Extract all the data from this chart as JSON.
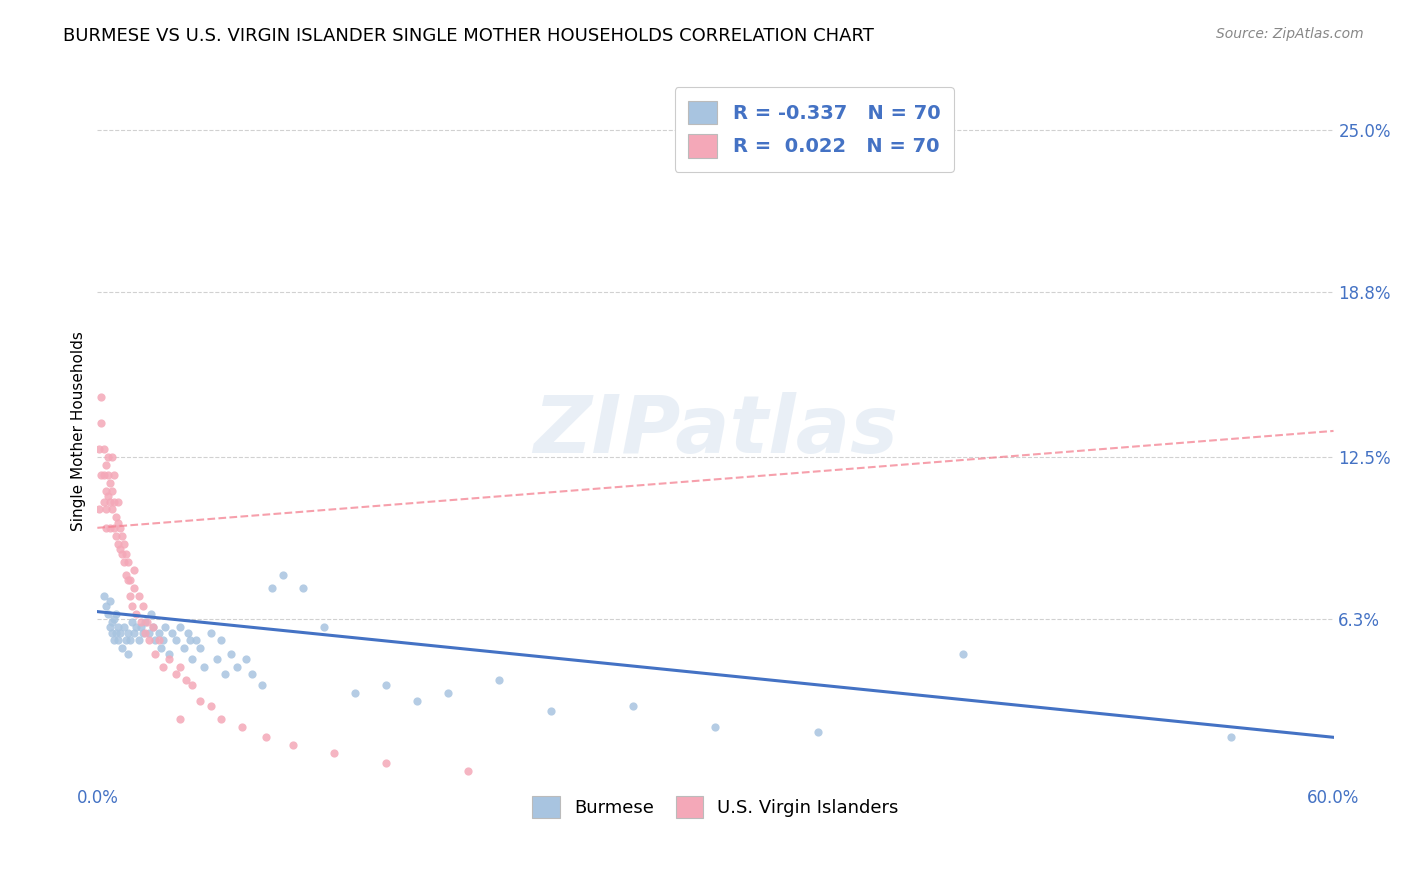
{
  "title": "BURMESE VS U.S. VIRGIN ISLANDER SINGLE MOTHER HOUSEHOLDS CORRELATION CHART",
  "source": "Source: ZipAtlas.com",
  "ylabel": "Single Mother Households",
  "xlim": [
    0.0,
    0.6
  ],
  "ylim": [
    0.0,
    0.27
  ],
  "yticks": [
    0.063,
    0.125,
    0.188,
    0.25
  ],
  "ytick_labels": [
    "6.3%",
    "12.5%",
    "18.8%",
    "25.0%"
  ],
  "xtick_positions": [
    0.0,
    0.6
  ],
  "xtick_labels": [
    "0.0%",
    "60.0%"
  ],
  "burmese_color": "#a8c4e0",
  "virgin_color": "#f4a8b8",
  "blue_line_color": "#4472c4",
  "pink_line_color": "#f48090",
  "R_burmese": -0.337,
  "N_burmese": 70,
  "R_virgin": 0.022,
  "N_virgin": 70,
  "legend_label_burmese": "Burmese",
  "legend_label_virgin": "U.S. Virgin Islanders",
  "watermark": "ZIPatlas",
  "title_fontsize": 13,
  "tick_label_color": "#4472c4",
  "blue_trendline_x": [
    0.0,
    0.6
  ],
  "blue_trendline_y": [
    0.066,
    0.018
  ],
  "pink_trendline_x": [
    0.0,
    0.6
  ],
  "pink_trendline_y": [
    0.098,
    0.135
  ],
  "burmese_x": [
    0.003,
    0.004,
    0.005,
    0.006,
    0.006,
    0.007,
    0.007,
    0.008,
    0.008,
    0.009,
    0.009,
    0.01,
    0.01,
    0.011,
    0.012,
    0.013,
    0.014,
    0.015,
    0.015,
    0.016,
    0.017,
    0.018,
    0.019,
    0.02,
    0.021,
    0.022,
    0.023,
    0.025,
    0.026,
    0.027,
    0.028,
    0.03,
    0.031,
    0.032,
    0.033,
    0.035,
    0.036,
    0.038,
    0.04,
    0.042,
    0.044,
    0.045,
    0.046,
    0.048,
    0.05,
    0.052,
    0.055,
    0.058,
    0.06,
    0.062,
    0.065,
    0.068,
    0.072,
    0.075,
    0.08,
    0.085,
    0.09,
    0.1,
    0.11,
    0.125,
    0.14,
    0.155,
    0.17,
    0.195,
    0.22,
    0.26,
    0.3,
    0.35,
    0.42,
    0.55
  ],
  "burmese_y": [
    0.072,
    0.068,
    0.065,
    0.07,
    0.06,
    0.058,
    0.062,
    0.055,
    0.063,
    0.058,
    0.065,
    0.06,
    0.055,
    0.058,
    0.052,
    0.06,
    0.055,
    0.058,
    0.05,
    0.055,
    0.062,
    0.058,
    0.06,
    0.055,
    0.06,
    0.058,
    0.062,
    0.058,
    0.065,
    0.06,
    0.055,
    0.058,
    0.052,
    0.055,
    0.06,
    0.05,
    0.058,
    0.055,
    0.06,
    0.052,
    0.058,
    0.055,
    0.048,
    0.055,
    0.052,
    0.045,
    0.058,
    0.048,
    0.055,
    0.042,
    0.05,
    0.045,
    0.048,
    0.042,
    0.038,
    0.075,
    0.08,
    0.075,
    0.06,
    0.035,
    0.038,
    0.032,
    0.035,
    0.04,
    0.028,
    0.03,
    0.022,
    0.02,
    0.05,
    0.018
  ],
  "virgin_x": [
    0.001,
    0.001,
    0.002,
    0.002,
    0.002,
    0.003,
    0.003,
    0.003,
    0.004,
    0.004,
    0.004,
    0.004,
    0.005,
    0.005,
    0.005,
    0.006,
    0.006,
    0.006,
    0.007,
    0.007,
    0.007,
    0.008,
    0.008,
    0.008,
    0.009,
    0.009,
    0.01,
    0.01,
    0.01,
    0.011,
    0.011,
    0.012,
    0.012,
    0.013,
    0.013,
    0.014,
    0.014,
    0.015,
    0.015,
    0.016,
    0.016,
    0.017,
    0.018,
    0.018,
    0.019,
    0.02,
    0.021,
    0.022,
    0.023,
    0.024,
    0.025,
    0.027,
    0.028,
    0.03,
    0.032,
    0.035,
    0.038,
    0.04,
    0.043,
    0.046,
    0.05,
    0.055,
    0.06,
    0.07,
    0.082,
    0.095,
    0.115,
    0.14,
    0.18,
    0.04
  ],
  "virgin_y": [
    0.105,
    0.128,
    0.138,
    0.148,
    0.118,
    0.108,
    0.118,
    0.128,
    0.112,
    0.122,
    0.105,
    0.098,
    0.11,
    0.118,
    0.125,
    0.098,
    0.108,
    0.115,
    0.105,
    0.112,
    0.125,
    0.098,
    0.108,
    0.118,
    0.095,
    0.102,
    0.092,
    0.1,
    0.108,
    0.09,
    0.098,
    0.088,
    0.095,
    0.085,
    0.092,
    0.08,
    0.088,
    0.078,
    0.085,
    0.072,
    0.078,
    0.068,
    0.075,
    0.082,
    0.065,
    0.072,
    0.062,
    0.068,
    0.058,
    0.062,
    0.055,
    0.06,
    0.05,
    0.055,
    0.045,
    0.048,
    0.042,
    0.045,
    0.04,
    0.038,
    0.032,
    0.03,
    0.025,
    0.022,
    0.018,
    0.015,
    0.012,
    0.008,
    0.005,
    0.025
  ]
}
